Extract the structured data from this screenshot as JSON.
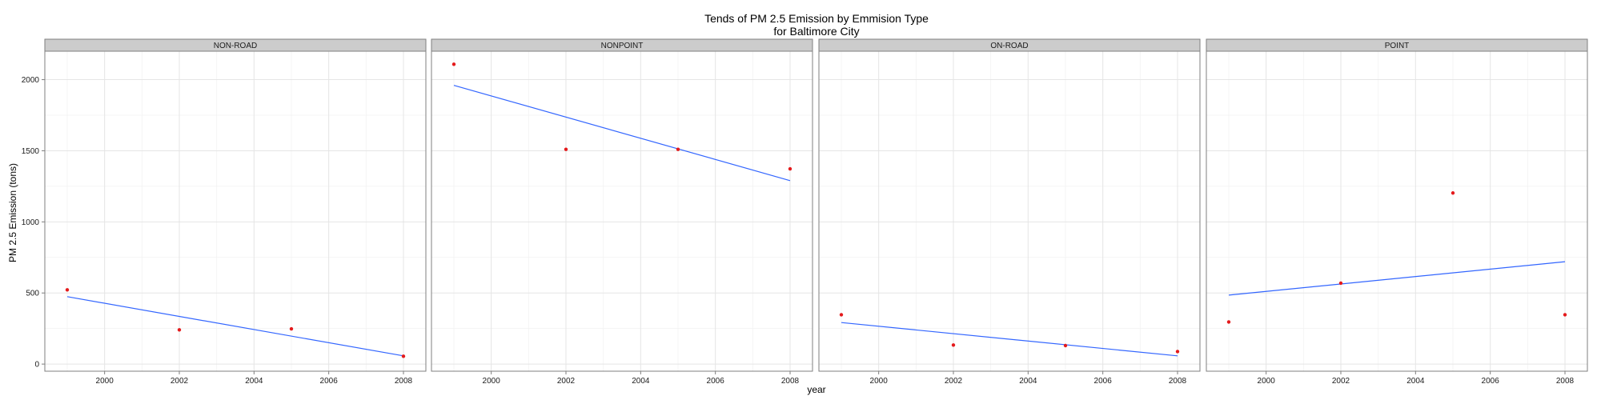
{
  "chart_data": {
    "type": "scatter",
    "title": "Tends of PM 2.5 Emission by Emmision Type",
    "subtitle": "for Baltimore City",
    "xlabel": "year",
    "ylabel": "PM 2.5 Emission (tons)",
    "xlim": [
      1998.4,
      2008.6
    ],
    "ylim": [
      -50,
      2200
    ],
    "x_ticks": [
      2000,
      2002,
      2004,
      2006,
      2008
    ],
    "y_ticks": [
      0,
      500,
      1000,
      1500,
      2000
    ],
    "grid": true,
    "point_color": "#e41a1c",
    "line_color": "#3366ff",
    "panels": [
      {
        "label": "NON-ROAD",
        "points": [
          {
            "x": 1999,
            "y": 522
          },
          {
            "x": 2002,
            "y": 241
          },
          {
            "x": 2005,
            "y": 248
          },
          {
            "x": 2008,
            "y": 55
          }
        ],
        "trend": [
          {
            "x": 1999,
            "y": 474
          },
          {
            "x": 2008,
            "y": 58
          }
        ]
      },
      {
        "label": "NONPOINT",
        "points": [
          {
            "x": 1999,
            "y": 2108
          },
          {
            "x": 2002,
            "y": 1510
          },
          {
            "x": 2005,
            "y": 1510
          },
          {
            "x": 2008,
            "y": 1373
          }
        ],
        "trend": [
          {
            "x": 1999,
            "y": 1960
          },
          {
            "x": 2008,
            "y": 1290
          }
        ]
      },
      {
        "label": "ON-ROAD",
        "points": [
          {
            "x": 1999,
            "y": 347
          },
          {
            "x": 2002,
            "y": 134
          },
          {
            "x": 2005,
            "y": 130
          },
          {
            "x": 2008,
            "y": 88
          }
        ],
        "trend": [
          {
            "x": 1999,
            "y": 292
          },
          {
            "x": 2008,
            "y": 58
          }
        ]
      },
      {
        "label": "POINT",
        "points": [
          {
            "x": 1999,
            "y": 296
          },
          {
            "x": 2002,
            "y": 569
          },
          {
            "x": 2005,
            "y": 1203
          },
          {
            "x": 2008,
            "y": 347
          }
        ],
        "trend": [
          {
            "x": 1999,
            "y": 485
          },
          {
            "x": 2008,
            "y": 720
          }
        ]
      }
    ]
  }
}
